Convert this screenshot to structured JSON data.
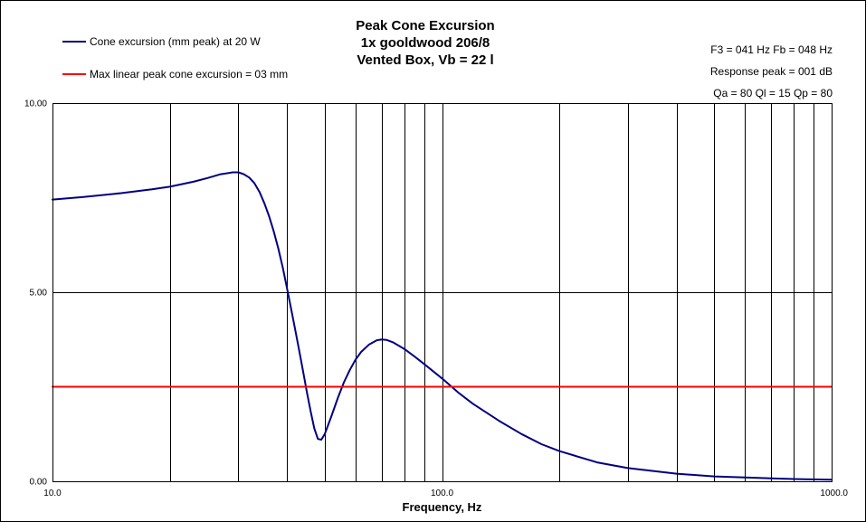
{
  "chart_data": {
    "type": "line",
    "title": [
      "Peak Cone Excursion",
      "1x gooldwood 206/8",
      "Vented Box, Vb = 22 l"
    ],
    "info": [
      "F3 = 041 Hz  Fb = 048 Hz",
      "Response  peak = 001 dB",
      "Qa = 80  Ql = 15  Qp = 80"
    ],
    "xlabel": "Frequency, Hz",
    "ylabel": "",
    "x_scale": "log",
    "xlim": [
      10,
      1000
    ],
    "ylim": [
      0,
      10
    ],
    "x_ticks": [
      10,
      100,
      1000
    ],
    "x_tick_labels": [
      "10.0",
      "100.0",
      "1000.0"
    ],
    "y_ticks": [
      0,
      5,
      10
    ],
    "y_tick_labels": [
      "0.00",
      "5.00",
      "10.00"
    ],
    "x_gridlines": [
      20,
      30,
      40,
      50,
      60,
      70,
      80,
      90,
      100,
      200,
      300,
      400,
      500,
      600,
      700,
      800,
      900
    ],
    "y_gridlines": [
      5
    ],
    "legend_position": "top-left",
    "series": [
      {
        "name": "Cone excursion (mm peak) at 20 W",
        "color": "#000080",
        "x": [
          10,
          12,
          15,
          18,
          20,
          23,
          25,
          27,
          29,
          30,
          31,
          32,
          33,
          34,
          35,
          36,
          37,
          38,
          39,
          40,
          41,
          42,
          43,
          44,
          45,
          46,
          47,
          48,
          49,
          50,
          52,
          54,
          56,
          58,
          60,
          62,
          65,
          68,
          70,
          72,
          75,
          80,
          85,
          90,
          100,
          110,
          120,
          140,
          160,
          180,
          200,
          250,
          300,
          400,
          500,
          600,
          700,
          800,
          900,
          1000
        ],
        "y": [
          7.45,
          7.52,
          7.62,
          7.72,
          7.79,
          7.92,
          8.02,
          8.12,
          8.17,
          8.17,
          8.12,
          8.03,
          7.88,
          7.65,
          7.35,
          7.0,
          6.6,
          6.15,
          5.65,
          5.1,
          4.55,
          4.0,
          3.45,
          2.9,
          2.35,
          1.85,
          1.4,
          1.12,
          1.1,
          1.25,
          1.72,
          2.2,
          2.62,
          2.95,
          3.22,
          3.42,
          3.62,
          3.73,
          3.75,
          3.74,
          3.67,
          3.5,
          3.3,
          3.1,
          2.72,
          2.35,
          2.05,
          1.6,
          1.25,
          0.98,
          0.8,
          0.5,
          0.35,
          0.2,
          0.13,
          0.1,
          0.08,
          0.06,
          0.05,
          0.04
        ]
      },
      {
        "name": "Max linear peak cone excursion = 03 mm",
        "color": "#ff0000",
        "x": [
          10,
          1000
        ],
        "y": [
          2.5,
          2.5
        ]
      }
    ]
  }
}
